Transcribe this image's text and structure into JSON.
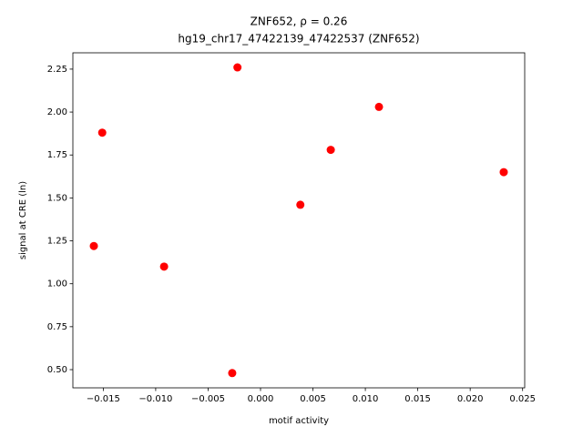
{
  "chart_data": {
    "type": "scatter",
    "title": "ZNF652, ρ = 0.26",
    "subtitle": "hg19_chr17_47422139_47422537 (ZNF652)",
    "x_label": "motif activity",
    "y_label": "signal at CRE (ln)",
    "color": "#ff0000",
    "x": [
      -0.0159,
      -0.0151,
      -0.0092,
      -0.0027,
      -0.0022,
      0.0038,
      0.0067,
      0.0113,
      0.0232
    ],
    "y": [
      1.22,
      1.88,
      1.1,
      0.48,
      2.26,
      1.46,
      1.78,
      2.03,
      1.65
    ],
    "xlim": [
      -0.0179,
      0.0252
    ],
    "ylim": [
      0.394,
      2.345
    ],
    "xticks": [
      {
        "value": -0.015,
        "label": "−0.015"
      },
      {
        "value": -0.01,
        "label": "−0.010"
      },
      {
        "value": -0.005,
        "label": "−0.005"
      },
      {
        "value": 0,
        "label": "0.000"
      },
      {
        "value": 0.005,
        "label": "0.005"
      },
      {
        "value": 0.01,
        "label": "0.010"
      },
      {
        "value": 0.015,
        "label": "0.015"
      },
      {
        "value": 0.02,
        "label": "0.020"
      },
      {
        "value": 0.025,
        "label": "0.025"
      }
    ],
    "yticks": [
      {
        "value": 0.5,
        "label": "0.50"
      },
      {
        "value": 0.75,
        "label": "0.75"
      },
      {
        "value": 1,
        "label": "1.00"
      },
      {
        "value": 1.25,
        "label": "1.25"
      },
      {
        "value": 1.5,
        "label": "1.50"
      },
      {
        "value": 1.75,
        "label": "1.75"
      },
      {
        "value": 2,
        "label": "2.00"
      },
      {
        "value": 2.25,
        "label": "2.25"
      }
    ]
  }
}
